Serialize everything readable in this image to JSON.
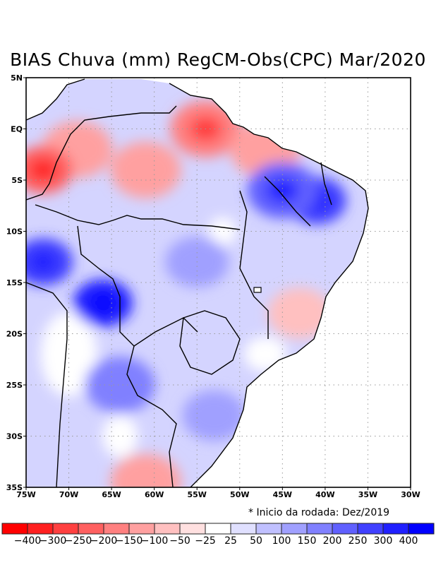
{
  "title": "BIAS Chuva (mm) RegCM-Obs(CPC) Mar/2020",
  "note": "* Inicio da rodada: Dez/2019",
  "chart_data": {
    "type": "heatmap",
    "title": "BIAS Chuva (mm) RegCM-Obs(CPC) Mar/2020",
    "variable": "Precipitation bias (mm), RegCM minus CPC observations",
    "region": "Brazil / South America",
    "x_ticks": [
      "75W",
      "70W",
      "65W",
      "60W",
      "55W",
      "50W",
      "45W",
      "40W",
      "35W",
      "30W"
    ],
    "y_ticks": [
      "5N",
      "EQ",
      "5S",
      "10S",
      "15S",
      "20S",
      "25S",
      "30S",
      "35S"
    ],
    "xlim": [
      -75,
      -30
    ],
    "ylim": [
      -35,
      5
    ],
    "grid": true,
    "colorbar": {
      "labels": [
        "-400",
        "-300",
        "-250",
        "-200",
        "-150",
        "-100",
        "-50",
        "-25",
        "25",
        "50",
        "100",
        "150",
        "200",
        "250",
        "300",
        "400"
      ],
      "colors": [
        "#ff0000",
        "#ff2020",
        "#ff4040",
        "#ff6060",
        "#ff8080",
        "#ffa0a0",
        "#ffc0c0",
        "#ffe0e0",
        "#ffffff",
        "#e0e0ff",
        "#c0c0ff",
        "#a0a0ff",
        "#8080ff",
        "#6060ff",
        "#4040ff",
        "#2020ff",
        "#0000ff"
      ]
    },
    "features": [
      {
        "name": "northern-amazon-dry-bias",
        "lon": -69,
        "lat": -2,
        "level": -150
      },
      {
        "name": "western-amazon-dry-core",
        "lon": -73,
        "lat": -4,
        "level": -250
      },
      {
        "name": "central-amazon-dry-bias",
        "lon": -61,
        "lat": -4,
        "level": -150
      },
      {
        "name": "para-amapa-dry-bias",
        "lon": -54,
        "lat": 0,
        "level": -200
      },
      {
        "name": "maranhao-coast-dry-bias",
        "lon": -47,
        "lat": -2,
        "level": -150
      },
      {
        "name": "northeast-wet-bias",
        "lon": -41,
        "lat": -7,
        "level": 250
      },
      {
        "name": "maranhao-wet-bias",
        "lon": -45,
        "lat": -6,
        "level": 200
      },
      {
        "name": "bolivia-wet-core",
        "lon": -66,
        "lat": -17,
        "level": 300
      },
      {
        "name": "peru-wet-bias",
        "lon": -73,
        "lat": -13,
        "level": 250
      },
      {
        "name": "central-brazil-wet-bias",
        "lon": -55,
        "lat": -13,
        "level": 100
      },
      {
        "name": "minas-gerais-dry-bias",
        "lon": -43,
        "lat": -18,
        "level": -100
      },
      {
        "name": "southern-brazil-wet-bias",
        "lon": -53,
        "lat": -28,
        "level": 100
      },
      {
        "name": "argentina-wet-bias",
        "lon": -64,
        "lat": -25,
        "level": 150
      },
      {
        "name": "argentina-south-dry-bias",
        "lon": -61,
        "lat": -34.5,
        "level": -150
      }
    ]
  }
}
